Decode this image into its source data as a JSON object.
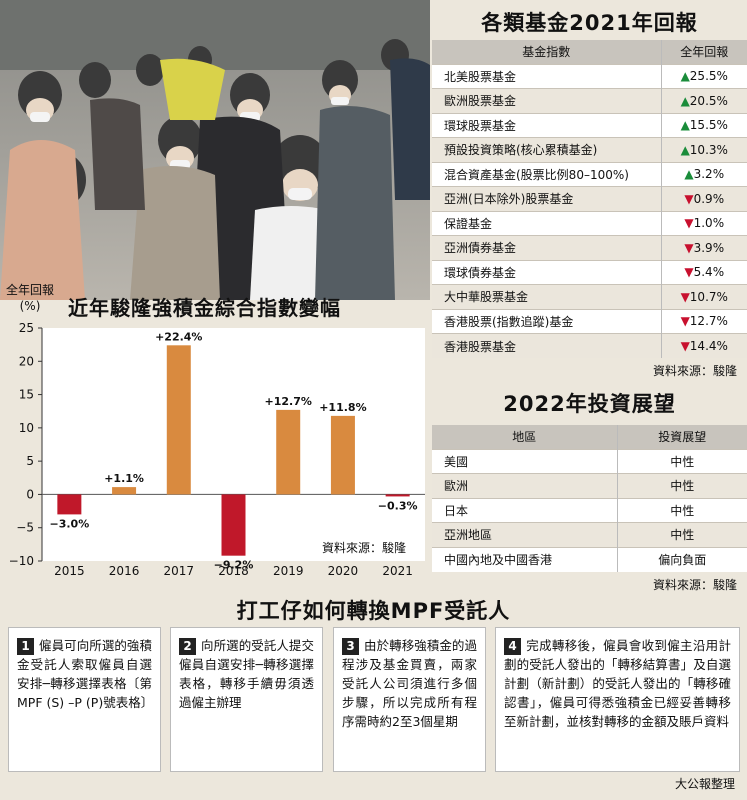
{
  "chart_data": {
    "type": "bar",
    "title": "近年駿隆強積金綜合指數變幅",
    "ylabel": "全年回報",
    "yunit": "(%)",
    "categories": [
      "2015",
      "2016",
      "2017",
      "2018",
      "2019",
      "2020",
      "2021"
    ],
    "values": [
      -3.0,
      1.1,
      22.4,
      -9.2,
      12.7,
      11.8,
      -0.3
    ],
    "value_labels": [
      "−3.0%",
      "+1.1%",
      "+22.4%",
      "−9.2%",
      "+12.7%",
      "+11.8%",
      "−0.3%"
    ],
    "ylim": [
      -10,
      25
    ],
    "yticks": [
      25,
      20,
      15,
      10,
      5,
      0,
      -5,
      -10
    ],
    "ytick_labels": [
      "25",
      "20",
      "15",
      "10",
      "5",
      "0",
      "−5",
      "−10"
    ],
    "colors": {
      "positive": "#d98a3f",
      "negative": "#c0182a"
    },
    "source": "資料來源：駿隆"
  },
  "fund_returns": {
    "title": "各類基金2021年回報",
    "headers": [
      "基金指數",
      "全年回報"
    ],
    "rows": [
      {
        "name": "北美股票基金",
        "value": "▲25.5%",
        "dir": "up"
      },
      {
        "name": "歐洲股票基金",
        "value": "▲20.5%",
        "dir": "up"
      },
      {
        "name": "環球股票基金",
        "value": "▲15.5%",
        "dir": "up"
      },
      {
        "name": "預設投資策略(核心累積基金)",
        "value": "▲10.3%",
        "dir": "up"
      },
      {
        "name": "混合資產基金(股票比例80–100%)",
        "value": "▲3.2%",
        "dir": "up"
      },
      {
        "name": "亞洲(日本除外)股票基金",
        "value": "▼0.9%",
        "dir": "down"
      },
      {
        "name": "保證基金",
        "value": "▼1.0%",
        "dir": "down"
      },
      {
        "name": "亞洲債券基金",
        "value": "▼3.9%",
        "dir": "down"
      },
      {
        "name": "環球債券基金",
        "value": "▼5.4%",
        "dir": "down"
      },
      {
        "name": "大中華股票基金",
        "value": "▼10.7%",
        "dir": "down"
      },
      {
        "name": "香港股票(指數追蹤)基金",
        "value": "▼12.7%",
        "dir": "down"
      },
      {
        "name": "香港股票基金",
        "value": "▼14.4%",
        "dir": "down"
      }
    ],
    "source": "資料來源：駿隆"
  },
  "outlook": {
    "title": "2022年投資展望",
    "headers": [
      "地區",
      "投資展望"
    ],
    "rows": [
      {
        "region": "美國",
        "view": "中性"
      },
      {
        "region": "歐洲",
        "view": "中性"
      },
      {
        "region": "日本",
        "view": "中性"
      },
      {
        "region": "亞洲地區",
        "view": "中性"
      },
      {
        "region": "中國內地及中國香港",
        "view": "偏向負面"
      }
    ],
    "source": "資料來源：駿隆"
  },
  "steps": {
    "title": "打工仔如何轉換MPF受託人",
    "items": [
      {
        "num": "1",
        "text": "僱員可向所選的強積金受託人索取僱員自選安排─轉移選擇表格〔第 MPF (S) –P (P)號表格〕"
      },
      {
        "num": "2",
        "text": "向所選的受託人提交僱員自選安排─轉移選擇表格，轉移手續毋須透過僱主辦理"
      },
      {
        "num": "3",
        "text": "由於轉移強積金的過程涉及基金買賣，兩家受託人公司須進行多個步驟，所以完成所有程序需時約2至3個星期"
      },
      {
        "num": "4",
        "text": "完成轉移後，僱員會收到僱主沿用計劃的受託人發出的「轉移結算書」及自選計劃（新計劃）的受託人發出的「轉移確認書」，僱員可得悉強積金已經妥善轉移至新計劃，並核對轉移的金額及賬戶資料"
      }
    ]
  },
  "credit": "大公報整理"
}
